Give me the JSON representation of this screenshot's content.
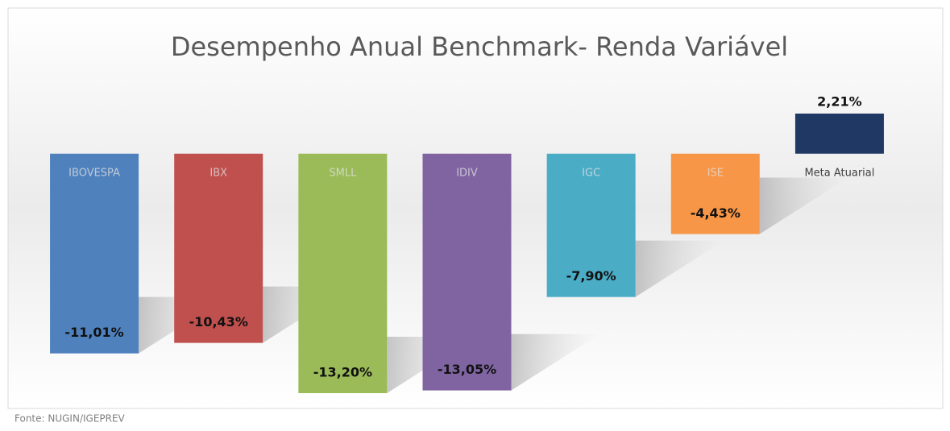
{
  "chart_data": {
    "type": "bar",
    "title": "Desempenho Anual Benchmark- Renda Variável",
    "categories": [
      "IBOVESPA",
      "IBX",
      "SMLL",
      "IDIV",
      "IGC",
      "ISE",
      "Meta Atuarial"
    ],
    "values": [
      -11.01,
      -10.43,
      -13.2,
      -13.05,
      -7.9,
      -4.43,
      2.21
    ],
    "value_labels": [
      "-11,01%",
      "-10,43%",
      "-13,20%",
      "-13,05%",
      "-7,90%",
      "-4,43%",
      "2,21%"
    ],
    "colors": [
      "#4f81bd",
      "#c0504d",
      "#9bbb59",
      "#8064a2",
      "#4bacc6",
      "#f79646",
      "#1f3864"
    ],
    "source": "Fonte: NUGIN/IGEPREV"
  }
}
